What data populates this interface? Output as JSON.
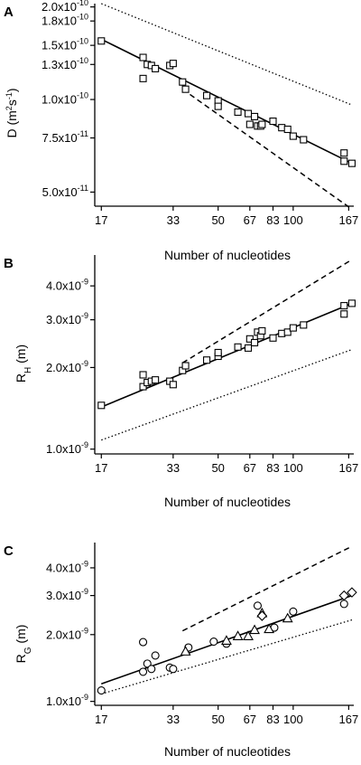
{
  "chart_data": [
    {
      "type": "scatter",
      "panel_label": "A",
      "ylabel": "D (m²s⁻¹)",
      "xlabel": "Number of nucleotides",
      "xscale": "log",
      "yscale": "log",
      "xlim": [
        16,
        175
      ],
      "ylim": [
        4.5e-11,
        2.05e-10
      ],
      "xticks": [
        17,
        33,
        50,
        67,
        83,
        100,
        167
      ],
      "xtick_labels": [
        "17",
        "33",
        "50",
        "67",
        "83",
        "100",
        "167"
      ],
      "yticks": [
        5e-11,
        7.5e-11,
        1e-10,
        1.3e-10,
        1.5e-10,
        1.8e-10,
        2e-10
      ],
      "ytick_labels": [
        "5.0x10⁻¹¹",
        "7.5x10⁻¹¹",
        "1.0x10⁻¹⁰",
        "1.3x10⁻¹⁰",
        "1.5x10⁻¹⁰",
        "1.8x10⁻¹⁰",
        "2.0x10⁻¹⁰"
      ],
      "series": [
        {
          "marker": "square",
          "x": [
            17,
            25,
            25,
            26,
            27,
            28,
            32,
            33,
            36,
            37,
            45,
            50,
            50,
            60,
            66,
            67,
            70,
            72,
            74,
            75,
            83,
            90,
            95,
            100,
            110,
            160,
            160,
            172
          ],
          "y": [
            1.55e-10,
            1.37e-10,
            1.17e-10,
            1.3e-10,
            1.29e-10,
            1.26e-10,
            1.29e-10,
            1.31e-10,
            1.14e-10,
            1.08e-10,
            1.03e-10,
            9.9e-11,
            9.5e-11,
            9.1e-11,
            9e-11,
            8.3e-11,
            8.8e-11,
            8.2e-11,
            8.2e-11,
            8.3e-11,
            8.5e-11,
            8.1e-11,
            8e-11,
            7.6e-11,
            7.4e-11,
            6.7e-11,
            6.3e-11,
            6.2e-11
          ]
        }
      ],
      "lines": [
        {
          "style": "solid",
          "x": [
            17,
            172
          ],
          "y": [
            1.57e-10,
            6.2e-11
          ]
        },
        {
          "style": "dotted",
          "x": [
            17,
            172
          ],
          "y": [
            2.05e-10,
            9.6e-11
          ]
        },
        {
          "style": "dashed",
          "x": [
            36,
            172
          ],
          "y": [
            1.08e-10,
            4.4e-11
          ]
        }
      ]
    },
    {
      "type": "scatter",
      "panel_label": "B",
      "ylabel": "R_H (m)",
      "xlabel": "Number of nucleotides",
      "xscale": "log",
      "yscale": "log",
      "xlim": [
        16,
        175
      ],
      "ylim": [
        9.6e-10,
        5.2e-09
      ],
      "xticks": [
        17,
        33,
        50,
        67,
        83,
        100,
        167
      ],
      "xtick_labels": [
        "17",
        "33",
        "50",
        "67",
        "83",
        "100",
        "167"
      ],
      "yticks": [
        1e-09,
        2e-09,
        3e-09,
        4e-09
      ],
      "ytick_labels": [
        "1.0x10⁻⁹",
        "2.0x10⁻⁹",
        "3.0x10⁻⁹",
        "4.0x10⁻⁹"
      ],
      "series": [
        {
          "marker": "square",
          "x": [
            17,
            25,
            25,
            26,
            27,
            28,
            32,
            33,
            36,
            37,
            45,
            50,
            50,
            60,
            66,
            67,
            70,
            72,
            74,
            75,
            83,
            90,
            95,
            100,
            110,
            160,
            160,
            172
          ],
          "y": [
            1.45e-09,
            1.88e-09,
            1.7e-09,
            1.76e-09,
            1.78e-09,
            1.8e-09,
            1.78e-09,
            1.73e-09,
            1.95e-09,
            2.03e-09,
            2.13e-09,
            2.2e-09,
            2.27e-09,
            2.38e-09,
            2.36e-09,
            2.55e-09,
            2.47e-09,
            2.7e-09,
            2.62e-09,
            2.73e-09,
            2.57e-09,
            2.67e-09,
            2.7e-09,
            2.8e-09,
            2.87e-09,
            3.15e-09,
            3.38e-09,
            3.45e-09
          ]
        }
      ],
      "lines": [
        {
          "style": "solid",
          "x": [
            17,
            172
          ],
          "y": [
            1.43e-09,
            3.45e-09
          ]
        },
        {
          "style": "dotted",
          "x": [
            17,
            172
          ],
          "y": [
            1.08e-09,
            2.33e-09
          ]
        },
        {
          "style": "dashed",
          "x": [
            36,
            172
          ],
          "y": [
            2.08e-09,
            5e-09
          ]
        }
      ]
    },
    {
      "type": "scatter",
      "panel_label": "C",
      "ylabel": "R_G (m)",
      "xlabel": "Number of nucleotides",
      "xscale": "log",
      "yscale": "log",
      "xlim": [
        16,
        175
      ],
      "ylim": [
        9.6e-10,
        5.2e-09
      ],
      "xticks": [
        17,
        33,
        50,
        67,
        83,
        100,
        167
      ],
      "xtick_labels": [
        "17",
        "33",
        "50",
        "67",
        "83",
        "100",
        "167"
      ],
      "yticks": [
        1e-09,
        2e-09,
        3e-09,
        4e-09
      ],
      "ytick_labels": [
        "1.0x10⁻⁹",
        "2.0x10⁻⁹",
        "3.0x10⁻⁹",
        "4.0x10⁻⁹"
      ],
      "series": [
        {
          "marker": "circle",
          "x": [
            17,
            25,
            25,
            26,
            27,
            28,
            32,
            33,
            38,
            48,
            54,
            72,
            84,
            100,
            160
          ],
          "y": [
            1.12e-09,
            1.85e-09,
            1.36e-09,
            1.48e-09,
            1.4e-09,
            1.61e-09,
            1.42e-09,
            1.4e-09,
            1.75e-09,
            1.86e-09,
            1.82e-09,
            2.7e-09,
            2.15e-09,
            2.54e-09,
            2.75e-09
          ]
        },
        {
          "marker": "triangle",
          "x": [
            37,
            54,
            60,
            66,
            70,
            75,
            80,
            95
          ],
          "y": [
            1.68e-09,
            1.88e-09,
            1.97e-09,
            1.97e-09,
            2.1e-09,
            2.5e-09,
            2.12e-09,
            2.37e-09
          ]
        },
        {
          "marker": "diamond",
          "x": [
            75,
            160,
            172
          ],
          "y": [
            2.43e-09,
            3e-09,
            3.1e-09
          ]
        }
      ],
      "lines": [
        {
          "style": "solid",
          "x": [
            17,
            172
          ],
          "y": [
            1.2e-09,
            3e-09
          ]
        },
        {
          "style": "dotted",
          "x": [
            17,
            172
          ],
          "y": [
            1.08e-09,
            2.33e-09
          ]
        },
        {
          "style": "dashed",
          "x": [
            36,
            172
          ],
          "y": [
            2.08e-09,
            5e-09
          ]
        }
      ]
    }
  ]
}
